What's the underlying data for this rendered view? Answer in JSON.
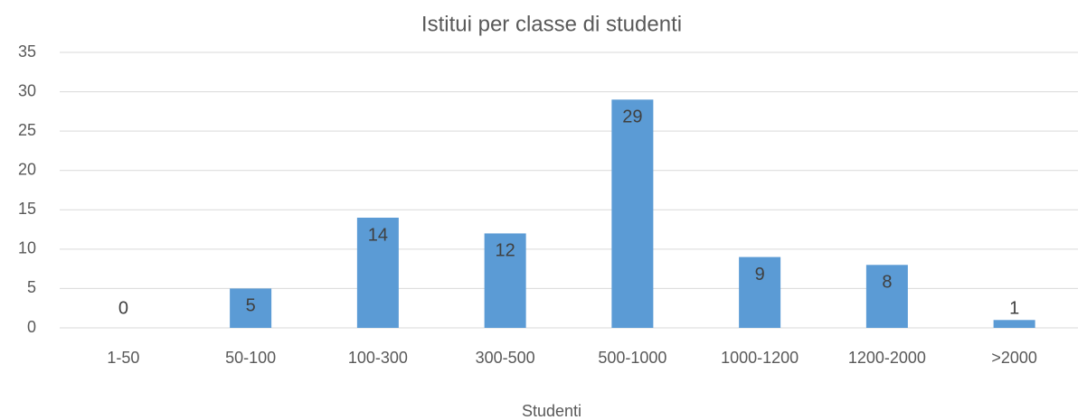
{
  "chart_data": {
    "type": "bar",
    "title": "Istitui per classe di studenti",
    "x_label": "Studenti",
    "categories": [
      "1-50",
      "50-100",
      "100-300",
      "300-500",
      "500-1000",
      "1000-1200",
      "1200-2000",
      ">2000"
    ],
    "values": [
      0,
      5,
      14,
      12,
      29,
      9,
      8,
      1
    ],
    "color": "#5b9bd5",
    "ylim": [
      0,
      35
    ],
    "yticks": [
      0,
      5,
      10,
      15,
      20,
      25,
      30,
      35
    ],
    "grid": true,
    "data_labels": true
  }
}
